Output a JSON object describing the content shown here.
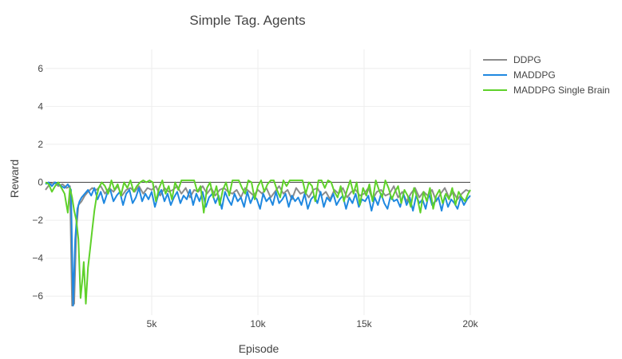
{
  "chart_data": {
    "type": "line",
    "title": "Simple Tag. Agents",
    "xlabel": "Episode",
    "ylabel": "Reward",
    "xlim": [
      0,
      20000
    ],
    "ylim": [
      -7,
      7
    ],
    "xticks": [
      5000,
      10000,
      15000,
      20000
    ],
    "xtick_labels": [
      "5k",
      "10k",
      "15k",
      "20k"
    ],
    "yticks": [
      -6,
      -4,
      -2,
      0,
      2,
      4,
      6
    ],
    "ytick_labels": [
      "−6",
      "−4",
      "−2",
      "0",
      "2",
      "4",
      "6"
    ],
    "grid": true,
    "zero_line": true,
    "legend_position": "top-right",
    "series": [
      {
        "name": "DDPG",
        "color": "#8c8c8c",
        "x": [
          0,
          200,
          400,
          600,
          800,
          1000,
          1150,
          1250,
          1350,
          1450,
          1550,
          1700,
          1850,
          2000,
          2200,
          2400,
          2600,
          2800,
          3000,
          3200,
          3400,
          3600,
          3800,
          4000,
          4200,
          4400,
          4600,
          4800,
          5000,
          5200,
          5400,
          5600,
          5800,
          6000,
          6200,
          6400,
          6600,
          6800,
          7000,
          7200,
          7400,
          7600,
          7800,
          8000,
          8200,
          8400,
          8600,
          8800,
          9000,
          9200,
          9400,
          9600,
          9800,
          10000,
          10200,
          10400,
          10600,
          10800,
          11000,
          11200,
          11400,
          11600,
          11800,
          12000,
          12200,
          12400,
          12600,
          12800,
          13000,
          13200,
          13400,
          13600,
          13800,
          14000,
          14200,
          14400,
          14600,
          14800,
          15000,
          15200,
          15400,
          15600,
          15800,
          16000,
          16200,
          16400,
          16600,
          16800,
          17000,
          17200,
          17400,
          17600,
          17800,
          18000,
          18200,
          18400,
          18600,
          18800,
          19000,
          19200,
          19400,
          19600,
          19800,
          20000
        ],
        "y": [
          -0.4,
          -0.1,
          0.0,
          -0.2,
          -0.1,
          -0.3,
          -0.2,
          -6.5,
          -6.4,
          -2.5,
          -1.2,
          -1.0,
          -0.7,
          -0.5,
          -0.3,
          -0.4,
          -0.2,
          -0.6,
          -0.3,
          -0.5,
          -0.2,
          -0.7,
          -0.4,
          -0.3,
          -0.5,
          -0.2,
          -0.6,
          -0.3,
          -0.4,
          -0.2,
          -0.7,
          -0.3,
          -0.5,
          -0.4,
          -0.2,
          -0.6,
          -0.3,
          -0.8,
          -0.4,
          -0.5,
          -0.2,
          -0.6,
          -0.3,
          -0.7,
          -0.4,
          -0.3,
          -0.5,
          -0.6,
          -0.4,
          -0.8,
          -0.3,
          -0.5,
          -0.7,
          -0.4,
          -0.6,
          -0.3,
          -0.8,
          -0.5,
          -0.2,
          -0.6,
          -0.4,
          -0.9,
          -0.3,
          -0.6,
          -0.5,
          -0.8,
          -0.4,
          -0.3,
          -0.7,
          -0.5,
          -0.9,
          -0.4,
          -0.6,
          -0.3,
          -0.8,
          -0.5,
          -0.4,
          -0.7,
          -0.6,
          -0.3,
          -0.9,
          -0.5,
          -0.4,
          -0.7,
          -0.6,
          -0.2,
          -0.8,
          -0.5,
          -1.0,
          -0.6,
          -0.3,
          -0.8,
          -0.5,
          -0.7,
          -0.4,
          -1.0,
          -0.6,
          -0.3,
          -0.8,
          -0.5,
          -0.9,
          -0.6,
          -0.4,
          -0.5
        ]
      },
      {
        "name": "MADDPG",
        "color": "#1f88e0",
        "x": [
          0,
          150,
          300,
          450,
          600,
          750,
          900,
          1050,
          1200,
          1300,
          1400,
          1500,
          1600,
          1700,
          1850,
          2000,
          2150,
          2300,
          2450,
          2600,
          2750,
          2900,
          3050,
          3200,
          3350,
          3500,
          3650,
          3800,
          3950,
          4100,
          4250,
          4400,
          4550,
          4700,
          4850,
          5000,
          5150,
          5300,
          5450,
          5600,
          5750,
          5900,
          6050,
          6200,
          6350,
          6500,
          6650,
          6800,
          6950,
          7100,
          7250,
          7400,
          7550,
          7700,
          7850,
          8000,
          8150,
          8300,
          8450,
          8600,
          8750,
          8900,
          9050,
          9200,
          9350,
          9500,
          9650,
          9800,
          9950,
          10100,
          10250,
          10400,
          10550,
          10700,
          10850,
          11000,
          11150,
          11300,
          11450,
          11600,
          11750,
          11900,
          12050,
          12200,
          12350,
          12500,
          12650,
          12800,
          12950,
          13100,
          13250,
          13400,
          13550,
          13700,
          13850,
          14000,
          14150,
          14300,
          14450,
          14600,
          14750,
          14900,
          15050,
          15200,
          15350,
          15500,
          15650,
          15800,
          15950,
          16100,
          16250,
          16400,
          16550,
          16700,
          16850,
          17000,
          17150,
          17300,
          17450,
          17600,
          17750,
          17900,
          18050,
          18200,
          18350,
          18500,
          18650,
          18800,
          18950,
          19100,
          19250,
          19400,
          19550,
          19700,
          19850,
          20000
        ],
        "y": [
          -0.1,
          0.0,
          -0.2,
          0.0,
          -0.1,
          -0.2,
          -0.3,
          -0.1,
          -0.4,
          -6.5,
          -3.0,
          -1.4,
          -1.0,
          -0.8,
          -0.6,
          -0.4,
          -0.7,
          -0.3,
          -0.9,
          -0.5,
          -1.1,
          -0.6,
          -0.4,
          -1.0,
          -0.7,
          -0.5,
          -1.2,
          -0.6,
          -0.4,
          -1.1,
          -0.8,
          -0.3,
          -1.0,
          -0.6,
          -0.9,
          -0.5,
          -1.3,
          -0.7,
          -0.4,
          -1.0,
          -0.6,
          -1.2,
          -0.8,
          -0.5,
          -1.1,
          -0.7,
          -0.9,
          -0.4,
          -1.2,
          -0.6,
          -1.0,
          -0.5,
          -1.3,
          -0.8,
          -0.6,
          -1.1,
          -0.7,
          -1.4,
          -0.5,
          -0.9,
          -1.2,
          -0.6,
          -1.0,
          -0.8,
          -1.3,
          -0.5,
          -1.1,
          -0.7,
          -0.9,
          -1.4,
          -0.6,
          -1.0,
          -0.8,
          -1.2,
          -0.5,
          -1.1,
          -0.9,
          -0.6,
          -1.3,
          -0.7,
          -1.0,
          -0.8,
          -1.2,
          -0.6,
          -1.4,
          -0.9,
          -0.7,
          -1.1,
          -0.5,
          -1.3,
          -0.8,
          -1.0,
          -0.6,
          -1.2,
          -0.9,
          -0.7,
          -1.4,
          -0.8,
          -1.1,
          -0.6,
          -1.3,
          -0.9,
          -1.0,
          -0.7,
          -1.5,
          -0.8,
          -1.2,
          -0.6,
          -1.1,
          -1.4,
          -0.7,
          -1.0,
          -0.9,
          -1.3,
          -0.6,
          -1.2,
          -0.8,
          -1.5,
          -0.7,
          -1.1,
          -0.9,
          -1.4,
          -0.6,
          -1.2,
          -1.0,
          -0.8,
          -1.5,
          -0.7,
          -1.3,
          -0.9,
          -1.1,
          -1.4,
          -0.8,
          -1.2,
          -0.9,
          -0.7
        ]
      },
      {
        "name": "MADDPG Single Brain",
        "color": "#5fd12a",
        "x": [
          0,
          150,
          300,
          450,
          600,
          750,
          900,
          1050,
          1150,
          1250,
          1350,
          1450,
          1550,
          1650,
          1750,
          1800,
          1900,
          2000,
          2100,
          2200,
          2300,
          2400,
          2500,
          2650,
          2800,
          2950,
          3100,
          3250,
          3400,
          3550,
          3700,
          3850,
          4000,
          4150,
          4300,
          4450,
          4600,
          4750,
          4900,
          5050,
          5200,
          5350,
          5500,
          5650,
          5800,
          5950,
          6100,
          6250,
          6400,
          6550,
          6700,
          6850,
          7000,
          7150,
          7300,
          7450,
          7600,
          7750,
          7900,
          8050,
          8200,
          8350,
          8500,
          8650,
          8800,
          8950,
          9100,
          9250,
          9400,
          9550,
          9700,
          9850,
          10000,
          10150,
          10300,
          10450,
          10600,
          10750,
          10900,
          11050,
          11200,
          11350,
          11500,
          11650,
          11800,
          11950,
          12100,
          12250,
          12400,
          12550,
          12700,
          12850,
          13000,
          13150,
          13300,
          13450,
          13600,
          13750,
          13900,
          14050,
          14200,
          14350,
          14500,
          14650,
          14800,
          14950,
          15100,
          15250,
          15400,
          15550,
          15700,
          15850,
          16000,
          16150,
          16300,
          16450,
          16600,
          16750,
          16900,
          17050,
          17200,
          17350,
          17500,
          17650,
          17800,
          17950,
          18100,
          18250,
          18400,
          18550,
          18700,
          18850,
          19000,
          19150,
          19300,
          19450,
          19600,
          19750,
          19900,
          20000
        ],
        "y": [
          0.0,
          -0.1,
          -0.5,
          -0.2,
          0.0,
          -0.3,
          -0.6,
          -1.6,
          -0.3,
          -0.8,
          -1.5,
          -2.0,
          -3.0,
          -6.1,
          -5.0,
          -4.2,
          -6.4,
          -4.5,
          -3.5,
          -2.5,
          -1.5,
          -0.8,
          -0.3,
          0.0,
          -0.2,
          -0.6,
          0.1,
          -0.4,
          -0.1,
          -0.7,
          0.0,
          -0.3,
          0.1,
          -0.5,
          -0.2,
          0.0,
          0.1,
          0.0,
          0.1,
          0.0,
          -1.0,
          -0.3,
          0.1,
          -0.6,
          -0.2,
          -0.9,
          0.0,
          -0.4,
          0.1,
          0.1,
          0.1,
          0.1,
          0.1,
          -0.5,
          -0.2,
          -1.6,
          -0.3,
          0.0,
          -0.8,
          -0.2,
          -1.2,
          -0.4,
          0.0,
          -0.7,
          0.1,
          0.1,
          0.1,
          -0.3,
          -0.6,
          0.1,
          0.0,
          -0.9,
          -0.2,
          0.1,
          -0.5,
          -0.1,
          0.1,
          0.1,
          -0.4,
          -0.8,
          0.1,
          -0.2,
          0.1,
          0.1,
          0.1,
          0.1,
          0.1,
          -0.6,
          0.0,
          -0.2,
          -1.0,
          0.1,
          0.1,
          -0.3,
          0.1,
          0.0,
          -0.5,
          -0.8,
          -0.2,
          -1.0,
          -0.4,
          0.1,
          -0.6,
          0.0,
          -1.2,
          -0.3,
          -0.7,
          -0.1,
          -1.0,
          0.1,
          -0.4,
          -0.8,
          0.1,
          -0.3,
          -0.9,
          -0.5,
          -0.2,
          -1.1,
          -0.4,
          -0.7,
          -1.3,
          -0.3,
          -0.8,
          -1.6,
          -0.5,
          -1.0,
          -0.3,
          -1.4,
          -0.7,
          -0.4,
          -1.1,
          -0.6,
          -0.9,
          -0.3,
          -1.2,
          -0.5,
          -0.8,
          -1.0,
          -0.6,
          -0.4
        ]
      }
    ]
  }
}
